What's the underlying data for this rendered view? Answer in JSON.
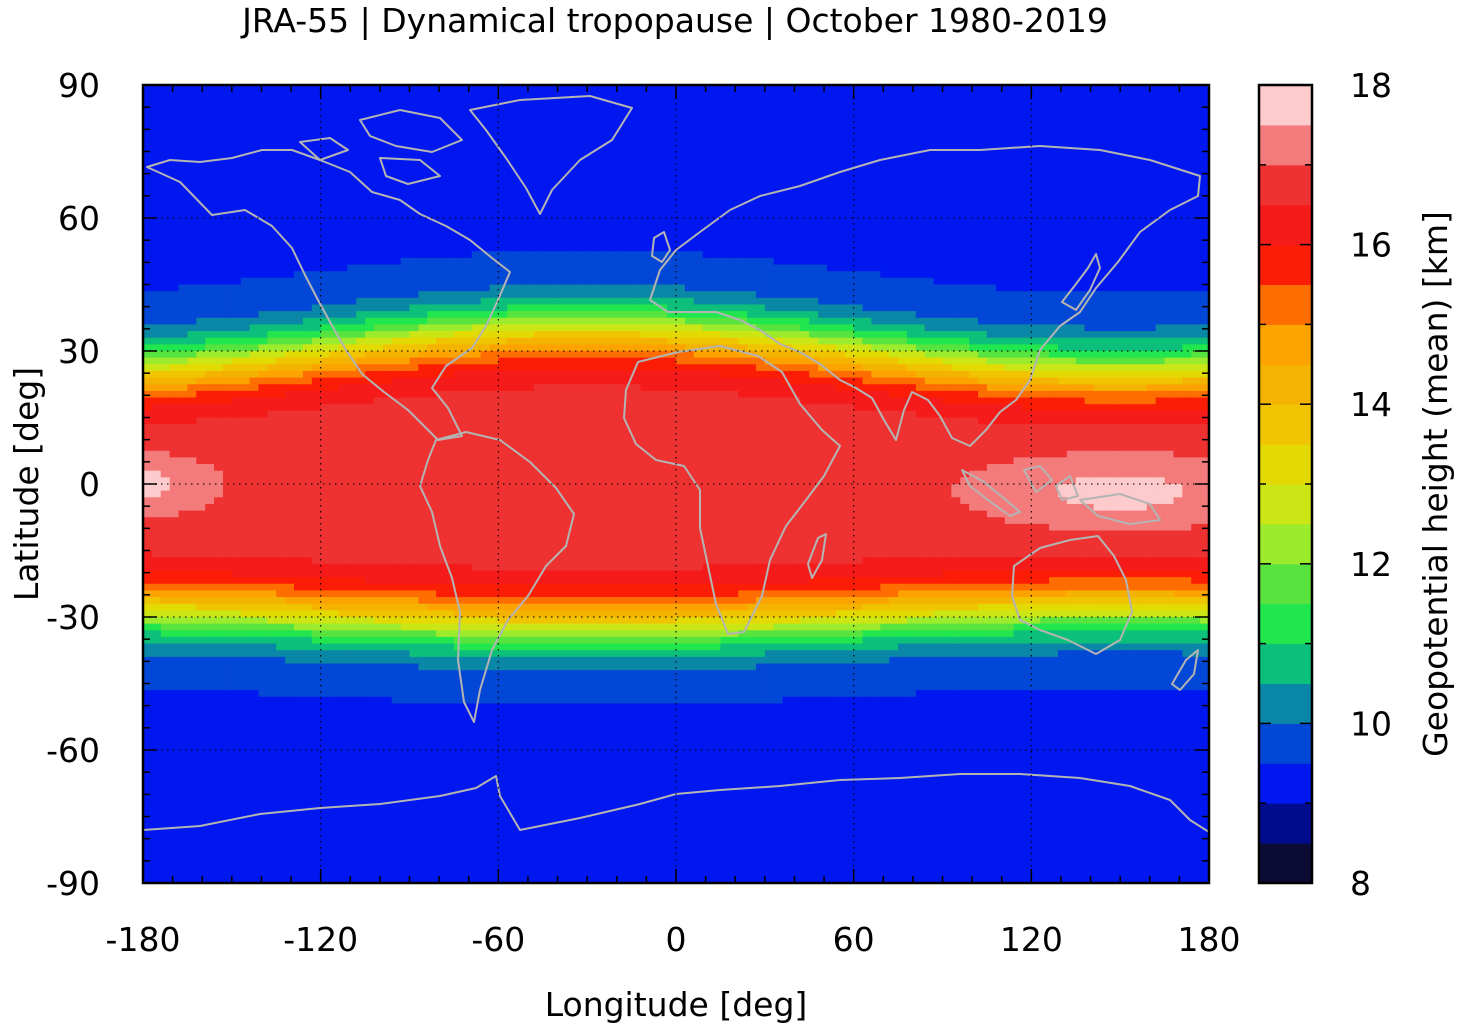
{
  "title": "JRA-55 | Dynamical tropopause | October 1980-2019",
  "x_axis": {
    "label": "Longitude [deg]",
    "range": [
      -180,
      180
    ],
    "ticks": [
      "-180",
      "-120",
      "-60",
      "0",
      "60",
      "120",
      "180"
    ],
    "tick_values": [
      -180,
      -120,
      -60,
      0,
      60,
      120,
      180
    ]
  },
  "y_axis": {
    "label": "Latitude [deg]",
    "range": [
      -90,
      90
    ],
    "ticks": [
      "90",
      "60",
      "30",
      "0",
      "-30",
      "-60",
      "-90"
    ],
    "tick_values": [
      90,
      60,
      30,
      0,
      -30,
      -60,
      -90
    ]
  },
  "colorbar": {
    "label": "Geopotential height (mean) [km]",
    "range": [
      8,
      18
    ],
    "ticks": [
      "8",
      "10",
      "12",
      "14",
      "16",
      "18"
    ],
    "tick_values": [
      8,
      10,
      12,
      14,
      16,
      18
    ],
    "step": 0.5,
    "colors": [
      "#0b0b35",
      "#000c8c",
      "#0017ef",
      "#0347d7",
      "#0a86a6",
      "#0cbf7a",
      "#21e64e",
      "#58e33e",
      "#9ceb2c",
      "#cce615",
      "#e3da04",
      "#f0c400",
      "#f4b300",
      "#fca300",
      "#fd6d01",
      "#fb1d05",
      "#f61b1b",
      "#ee3131",
      "#f47b7b",
      "#fdcbcb"
    ]
  },
  "grid": "dotted",
  "coastline_color": "#b4b4b4"
}
